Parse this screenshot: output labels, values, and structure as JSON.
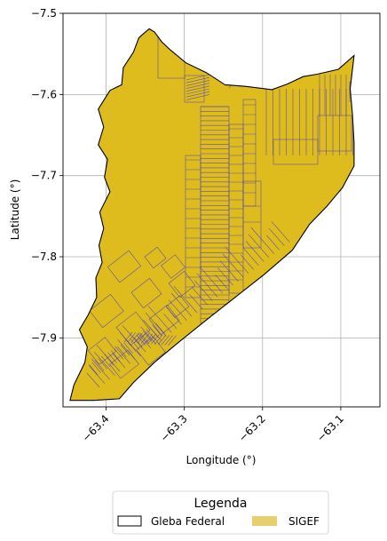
{
  "chart_data": {
    "type": "map",
    "xlabel": "Longitude (°)",
    "ylabel": "Latitude (°)",
    "xlim": [
      -63.455,
      -63.05
    ],
    "ylim": [
      -7.985,
      -7.5
    ],
    "x_ticks": [
      {
        "value": -63.4,
        "label": "−63.4"
      },
      {
        "value": -63.3,
        "label": "−63.3"
      },
      {
        "value": -63.2,
        "label": "−63.2"
      },
      {
        "value": -63.1,
        "label": "−63.1"
      }
    ],
    "y_ticks": [
      {
        "value": -7.5,
        "label": "−7.5"
      },
      {
        "value": -7.6,
        "label": "−7.6"
      },
      {
        "value": -7.7,
        "label": "−7.7"
      },
      {
        "value": -7.8,
        "label": "−7.8"
      },
      {
        "value": -7.9,
        "label": "−7.9"
      }
    ],
    "grid": true,
    "legend": {
      "title": "Legenda",
      "position": "bottom-center",
      "entries": [
        {
          "label": "Gleba Federal",
          "type": "outline",
          "color": "#000000"
        },
        {
          "label": "SIGEF",
          "type": "fill",
          "color": "#e8cf6e"
        }
      ]
    },
    "colors": {
      "parcel_fill": "#dfbc1e",
      "parcel_edge": "#4b3fb8",
      "boundary": "#000000",
      "grid": "#b0b0b0"
    },
    "boundary_polygon": [
      [
        -63.345,
        -7.519
      ],
      [
        -63.338,
        -7.523
      ],
      [
        -63.329,
        -7.535
      ],
      [
        -63.318,
        -7.545
      ],
      [
        -63.298,
        -7.561
      ],
      [
        -63.272,
        -7.573
      ],
      [
        -63.248,
        -7.588
      ],
      [
        -63.222,
        -7.59
      ],
      [
        -63.188,
        -7.594
      ],
      [
        -63.168,
        -7.587
      ],
      [
        -63.148,
        -7.578
      ],
      [
        -63.13,
        -7.575
      ],
      [
        -63.103,
        -7.569
      ],
      [
        -63.083,
        -7.552
      ],
      [
        -63.088,
        -7.593
      ],
      [
        -63.085,
        -7.625
      ],
      [
        -63.083,
        -7.66
      ],
      [
        -63.083,
        -7.688
      ],
      [
        -63.098,
        -7.715
      ],
      [
        -63.118,
        -7.738
      ],
      [
        -63.14,
        -7.76
      ],
      [
        -63.162,
        -7.792
      ],
      [
        -63.198,
        -7.822
      ],
      [
        -63.235,
        -7.85
      ],
      [
        -63.272,
        -7.878
      ],
      [
        -63.308,
        -7.906
      ],
      [
        -63.338,
        -7.93
      ],
      [
        -63.365,
        -7.955
      ],
      [
        -63.383,
        -7.975
      ],
      [
        -63.416,
        -7.977
      ],
      [
        -63.446,
        -7.977
      ],
      [
        -63.441,
        -7.958
      ],
      [
        -63.427,
        -7.93
      ],
      [
        -63.424,
        -7.911
      ],
      [
        -63.434,
        -7.89
      ],
      [
        -63.423,
        -7.872
      ],
      [
        -63.412,
        -7.85
      ],
      [
        -63.413,
        -7.826
      ],
      [
        -63.405,
        -7.807
      ],
      [
        -63.409,
        -7.786
      ],
      [
        -63.403,
        -7.765
      ],
      [
        -63.408,
        -7.745
      ],
      [
        -63.395,
        -7.72
      ],
      [
        -63.402,
        -7.702
      ],
      [
        -63.398,
        -7.68
      ],
      [
        -63.41,
        -7.662
      ],
      [
        -63.403,
        -7.64
      ],
      [
        -63.41,
        -7.618
      ],
      [
        -63.395,
        -7.595
      ],
      [
        -63.38,
        -7.588
      ],
      [
        -63.378,
        -7.567
      ],
      [
        -63.365,
        -7.548
      ],
      [
        -63.358,
        -7.53
      ],
      [
        -63.345,
        -7.519
      ]
    ],
    "parcel_rows": {
      "north_strip": {
        "count": 6
      },
      "central_column": {
        "count": 46
      },
      "east_block": {
        "count": 14
      },
      "southwest_diagonal": {
        "count": 38
      }
    }
  }
}
